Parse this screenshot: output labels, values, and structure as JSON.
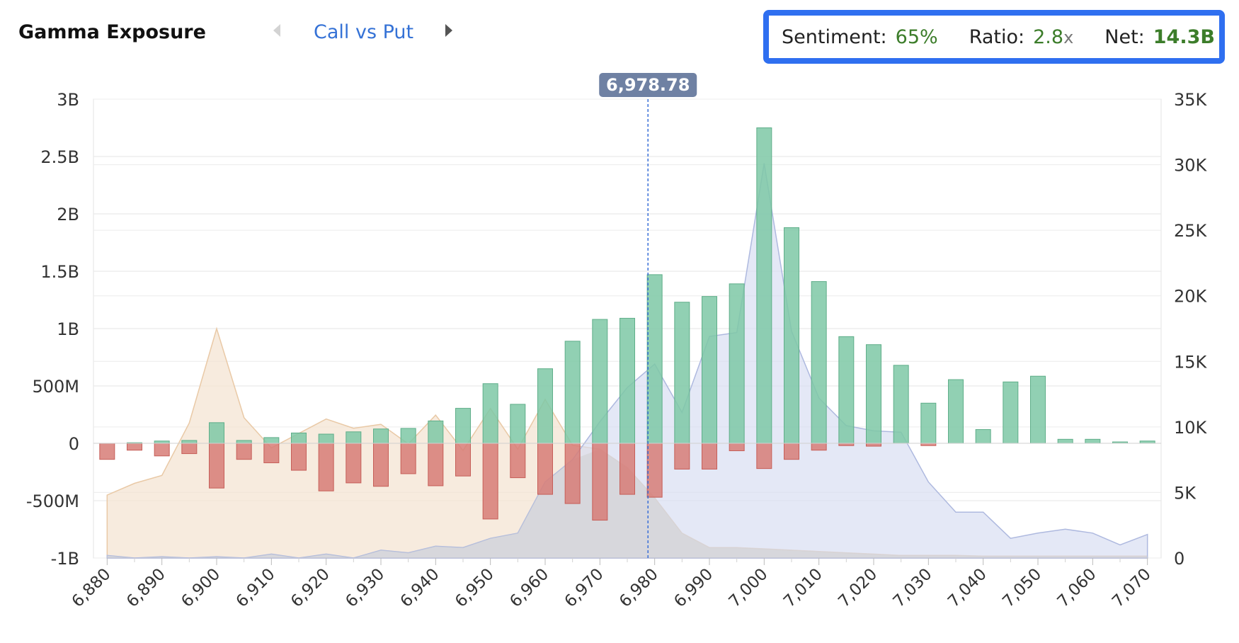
{
  "header": {
    "title": "Gamma Exposure",
    "nav_label": "Call vs Put"
  },
  "stats": {
    "sentiment_label": "Sentiment:",
    "sentiment_value": "65%",
    "ratio_label": "Ratio:",
    "ratio_value": "2.8",
    "ratio_suffix": "x",
    "net_label": "Net:",
    "net_value": "14.3B"
  },
  "colors": {
    "call": "#7ec8a6",
    "put": "#d77d77",
    "area_left": "#f3e3d0",
    "area_right": "#d6dcf1",
    "area_grey": "#cfcfcf",
    "marker": "#3a6fd8",
    "marker_label_bg": "#6f81a3",
    "nav_blue": "#3572d6",
    "stat_green": "#3c7d2a",
    "stats_border": "#2f6ff0"
  },
  "chart_data": {
    "type": "bar",
    "title": "Gamma Exposure",
    "y_left_lim": [
      -1000000000,
      3000000000
    ],
    "y_left_ticks": [
      -1000000000,
      -500000000,
      0,
      500000000,
      1000000000,
      1500000000,
      2000000000,
      2500000000,
      3000000000
    ],
    "y_left_tick_labels": [
      "-1B",
      "-500M",
      "0",
      "500M",
      "1B",
      "1.5B",
      "2B",
      "2.5B",
      "3B"
    ],
    "y_right_lim": [
      0,
      35000
    ],
    "y_right_ticks": [
      0,
      5000,
      10000,
      15000,
      20000,
      25000,
      30000,
      35000
    ],
    "y_right_tick_labels": [
      "0",
      "5K",
      "10K",
      "15K",
      "20K",
      "25K",
      "30K",
      "35K"
    ],
    "x_lim": [
      6877.5,
      7072.5
    ],
    "x_ticks": [
      6880,
      6890,
      6900,
      6910,
      6920,
      6930,
      6940,
      6950,
      6960,
      6970,
      6980,
      6990,
      7000,
      7010,
      7020,
      7030,
      7040,
      7050,
      7060,
      7070
    ],
    "x_tick_labels": [
      "6,880",
      "6,890",
      "6,900",
      "6,910",
      "6,920",
      "6,930",
      "6,940",
      "6,950",
      "6,960",
      "6,970",
      "6,980",
      "6,990",
      "7,000",
      "7,010",
      "7,020",
      "7,030",
      "7,040",
      "7,050",
      "7,060",
      "7,070"
    ],
    "categories": [
      6880,
      6885,
      6890,
      6895,
      6900,
      6905,
      6910,
      6915,
      6920,
      6925,
      6930,
      6935,
      6940,
      6945,
      6950,
      6955,
      6960,
      6965,
      6970,
      6975,
      6980,
      6985,
      6990,
      6995,
      7000,
      7005,
      7010,
      7015,
      7020,
      7025,
      7030,
      7035,
      7040,
      7045,
      7050,
      7055,
      7060,
      7065,
      7070
    ],
    "series": [
      {
        "name": "Call",
        "kind": "bar",
        "axis": "left",
        "values": [
          0,
          5000000,
          20000000,
          25000000,
          180000000,
          25000000,
          50000000,
          90000000,
          80000000,
          100000000,
          125000000,
          130000000,
          195000000,
          305000000,
          520000000,
          340000000,
          650000000,
          890000000,
          1080000000,
          1090000000,
          1470000000,
          1230000000,
          1280000000,
          1390000000,
          2750000000,
          1880000000,
          1410000000,
          930000000,
          860000000,
          680000000,
          350000000,
          555000000,
          120000000,
          535000000,
          585000000,
          35000000,
          35000000,
          12000000,
          20000000
        ]
      },
      {
        "name": "Put",
        "kind": "bar",
        "axis": "left",
        "values": [
          -140000000,
          -60000000,
          -110000000,
          -90000000,
          -390000000,
          -140000000,
          -170000000,
          -235000000,
          -415000000,
          -345000000,
          -375000000,
          -265000000,
          -370000000,
          -285000000,
          -660000000,
          -300000000,
          -445000000,
          -525000000,
          -670000000,
          -445000000,
          -470000000,
          -225000000,
          -225000000,
          -65000000,
          -220000000,
          -140000000,
          -60000000,
          -20000000,
          -25000000,
          0,
          -20000000,
          0,
          0,
          0,
          0,
          0,
          0,
          0,
          0
        ]
      },
      {
        "kind": "area",
        "axis": "right",
        "values": [
          4800,
          5700,
          6300,
          10300,
          17500,
          10700,
          8400,
          9500,
          10600,
          9900,
          10200,
          8700,
          10900,
          8200,
          11400,
          8300,
          12100,
          8600,
          8300,
          6900,
          4600,
          1900,
          800,
          800,
          700,
          600,
          500,
          400,
          300,
          200,
          200,
          200,
          150,
          150,
          150,
          150,
          150,
          150,
          150
        ]
      },
      {
        "kind": "area",
        "axis": "right",
        "values": [
          200,
          0,
          100,
          0,
          100,
          0,
          300,
          0,
          300,
          0,
          600,
          400,
          900,
          800,
          1500,
          1900,
          5800,
          7500,
          10400,
          13000,
          14800,
          11100,
          16900,
          17200,
          30100,
          17300,
          12200,
          10100,
          9700,
          9600,
          5800,
          3500,
          3500,
          1500,
          1900,
          2200,
          1900,
          1000,
          1800
        ]
      }
    ],
    "marker": {
      "x": 6978.78,
      "label": "6,978.78"
    }
  }
}
